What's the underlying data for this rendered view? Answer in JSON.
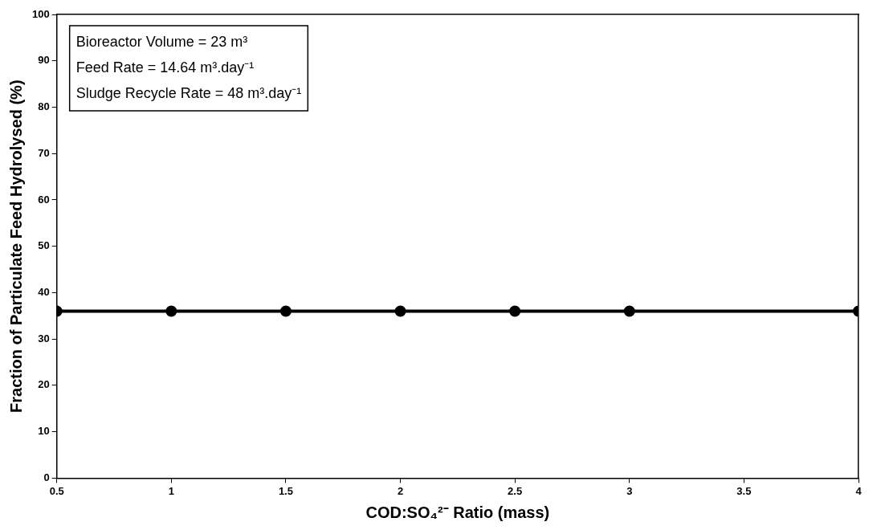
{
  "chart_data": {
    "type": "line",
    "xlabel": "COD:SO₄²⁻ Ratio (mass)",
    "ylabel": "Fraction of Particulate Feed Hydrolysed (%)",
    "x": [
      0.5,
      1,
      1.5,
      2,
      2.5,
      3,
      4
    ],
    "series": [
      {
        "color": "#000000",
        "values": [
          36,
          36,
          36,
          36,
          36,
          36,
          36
        ]
      }
    ],
    "xlim": [
      0.5,
      4
    ],
    "xticks": [
      0.5,
      1,
      1.5,
      2,
      2.5,
      3,
      3.5,
      4
    ],
    "ylim": [
      0,
      100
    ],
    "yticks": [
      0,
      10,
      20,
      30,
      40,
      50,
      60,
      70,
      80,
      90,
      100
    ],
    "grid": false,
    "legend": false,
    "marker": "circle",
    "line_style": "solid",
    "annotations": [
      "Bioreactor Volume = 23 m³",
      "Feed Rate = 14.64 m³.day⁻¹",
      "Sludge Recycle Rate = 48 m³.day⁻¹"
    ]
  }
}
